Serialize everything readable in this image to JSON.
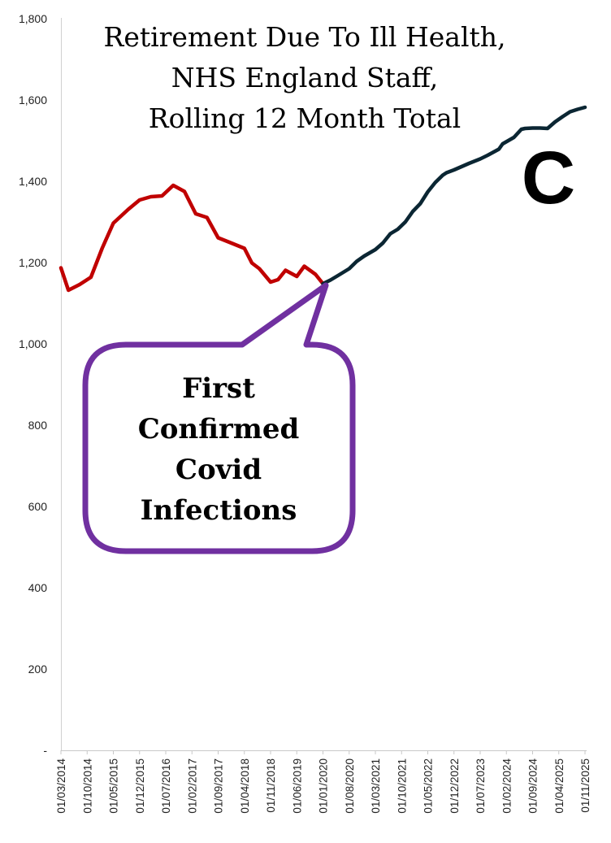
{
  "chart_data": {
    "type": "line",
    "title": [
      "Retirement Due To Ill Health,",
      "NHS England Staff,",
      "Rolling 12 Month Total"
    ],
    "xlabel": "",
    "ylabel": "",
    "ylim": [
      0,
      1800
    ],
    "y_ticks": [
      0,
      200,
      400,
      600,
      800,
      1000,
      1200,
      1400,
      1600,
      1800
    ],
    "y_tick_labels": [
      "-",
      "200",
      "400",
      "600",
      "800",
      "1,000",
      "1,200",
      "1,400",
      "1,600",
      "1,800"
    ],
    "x_tick_labels": [
      "01/03/2014",
      "01/10/2014",
      "01/05/2015",
      "01/12/2015",
      "01/07/2016",
      "01/02/2017",
      "01/09/2017",
      "01/04/2018",
      "01/11/2018",
      "01/06/2019",
      "01/01/2020",
      "01/08/2020",
      "01/03/2021",
      "01/10/2021",
      "01/05/2022",
      "01/12/2022",
      "01/07/2023",
      "01/02/2024",
      "01/09/2024",
      "01/04/2025",
      "01/11/2025"
    ],
    "grid": false,
    "legend": "none",
    "series": [
      {
        "color": "#c00000",
        "x": [
          "2014-03",
          "2014-05",
          "2014-08",
          "2014-11",
          "2015-02",
          "2015-05",
          "2015-09",
          "2015-12",
          "2016-03",
          "2016-06",
          "2016-09",
          "2016-12",
          "2017-03",
          "2017-06",
          "2017-09",
          "2017-12",
          "2018-04",
          "2018-06",
          "2018-08",
          "2018-11",
          "2019-01",
          "2019-03",
          "2019-06",
          "2019-08",
          "2019-11",
          "2020-01"
        ],
        "values": [
          1187,
          1132,
          1146,
          1164,
          1235,
          1297,
          1331,
          1354,
          1362,
          1364,
          1390,
          1375,
          1320,
          1311,
          1261,
          1250,
          1235,
          1199,
          1185,
          1152,
          1158,
          1181,
          1166,
          1191,
          1171,
          1148
        ]
      },
      {
        "color": "#0b2633",
        "x": [
          "2020-01",
          "2020-03",
          "2020-05",
          "2020-08",
          "2020-10",
          "2020-12",
          "2021-03",
          "2021-05",
          "2021-07",
          "2021-09",
          "2021-11",
          "2022-01",
          "2022-03",
          "2022-05",
          "2022-07",
          "2022-09",
          "2022-10",
          "2022-12",
          "2023-02",
          "2023-04",
          "2023-07",
          "2023-09",
          "2023-12",
          "2024-01",
          "2024-04",
          "2024-06",
          "2024-07",
          "2024-09",
          "2024-11",
          "2025-01",
          "2025-03",
          "2025-05",
          "2025-07",
          "2025-09",
          "2025-11"
        ],
        "values": [
          1148,
          1157,
          1168,
          1185,
          1203,
          1216,
          1232,
          1248,
          1271,
          1282,
          1300,
          1326,
          1345,
          1374,
          1397,
          1415,
          1421,
          1428,
          1436,
          1444,
          1455,
          1464,
          1479,
          1492,
          1508,
          1528,
          1530,
          1531,
          1531,
          1530,
          1546,
          1559,
          1571,
          1577,
          1582
        ]
      }
    ]
  },
  "callout": {
    "lines": [
      "First",
      "Confirmed",
      "Covid",
      "Infections"
    ],
    "border_color": "#7030a0"
  },
  "corner_label": "C"
}
